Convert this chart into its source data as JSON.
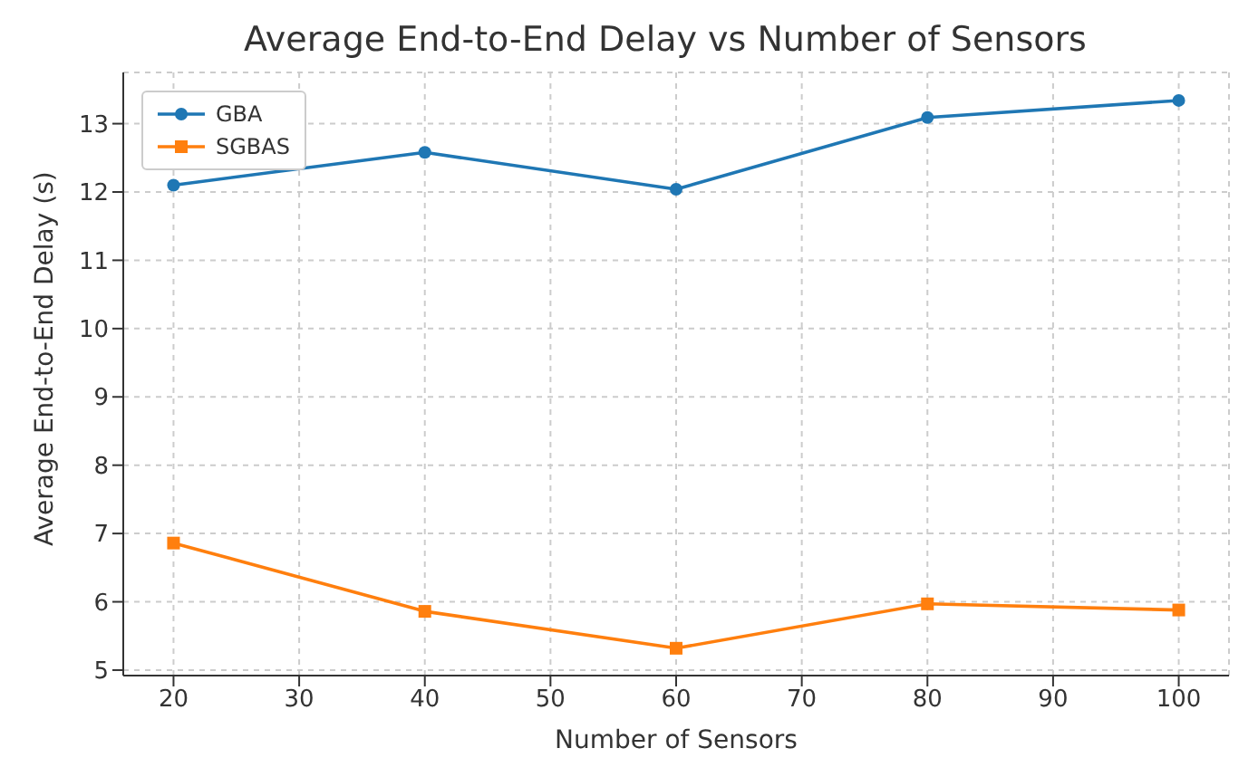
{
  "chart_data": {
    "type": "line",
    "title": "Average End-to-End Delay vs Number of Sensors",
    "xlabel": "Number of Sensors",
    "ylabel": "Average End-to-End Delay (s)",
    "x": [
      20,
      40,
      60,
      80,
      100
    ],
    "series": [
      {
        "name": "GBA",
        "color": "#1f77b4",
        "marker": "circle",
        "values": [
          12.1,
          12.58,
          12.04,
          13.09,
          13.34
        ]
      },
      {
        "name": "SGBAS",
        "color": "#ff7f0e",
        "marker": "square",
        "values": [
          6.86,
          5.86,
          5.32,
          5.97,
          5.88
        ]
      }
    ],
    "xlim": [
      16,
      104
    ],
    "xticks": [
      20,
      30,
      40,
      50,
      60,
      70,
      80,
      90,
      100
    ],
    "ylim": [
      4.92,
      13.75
    ],
    "yticks": [
      5,
      6,
      7,
      8,
      9,
      10,
      11,
      12,
      13
    ],
    "grid": true,
    "legend": "top left"
  }
}
